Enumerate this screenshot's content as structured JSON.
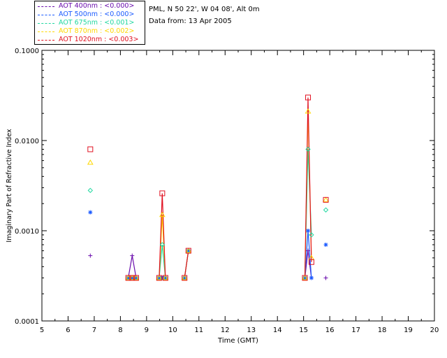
{
  "header": {
    "location": "PML, N 50 22', W 04 08', Alt 0m",
    "date": "Data from: 13 Apr 2005"
  },
  "chart_data": {
    "type": "line",
    "xlabel": "Time (GMT)",
    "ylabel": "Imaginary Part of Refractive Index",
    "xlim": [
      5,
      20
    ],
    "ylim": [
      0.0001,
      0.1
    ],
    "yscale": "log",
    "xticks": [
      "5",
      "6",
      "7",
      "8",
      "9",
      "10",
      "11",
      "12",
      "13",
      "14",
      "15",
      "16",
      "17",
      "18",
      "19",
      "20"
    ],
    "yticks": [
      {
        "value": 0.0001,
        "label": "0.0001"
      },
      {
        "value": 0.001,
        "label": "0.0010"
      },
      {
        "value": 0.01,
        "label": "0.0100"
      },
      {
        "value": 0.1,
        "label": "0.1000"
      }
    ],
    "legend_position": "top-left, outside plot",
    "series": [
      {
        "name": "AOT  400nm : <0.000>",
        "color": "#6a0dad",
        "marker": "plus",
        "points": [
          [
            6.85,
            0.00053
          ],
          [
            8.3,
            0.0003
          ],
          [
            8.45,
            0.00053
          ],
          [
            8.6,
            0.0003
          ],
          [
            9.48,
            0.0003
          ],
          [
            9.6,
            0.0003
          ],
          [
            9.72,
            0.0003
          ],
          [
            10.45,
            0.0003
          ],
          [
            10.6,
            0.0006
          ],
          [
            15.05,
            0.0003
          ],
          [
            15.17,
            0.0006
          ],
          [
            15.3,
            0.0003
          ],
          [
            15.85,
            0.0003
          ]
        ],
        "segments": [
          [
            1,
            2,
            3
          ],
          [
            4,
            5,
            6
          ],
          [
            7,
            8
          ],
          [
            9,
            10,
            11
          ]
        ]
      },
      {
        "name": "AOT  500nm : <0.000>",
        "color": "#1a5aff",
        "marker": "asterisk",
        "points": [
          [
            6.85,
            0.0016
          ],
          [
            8.3,
            0.0003
          ],
          [
            8.45,
            0.0003
          ],
          [
            8.6,
            0.0003
          ],
          [
            9.48,
            0.0003
          ],
          [
            9.6,
            0.0003
          ],
          [
            9.72,
            0.0003
          ],
          [
            10.45,
            0.0003
          ],
          [
            10.6,
            0.0006
          ],
          [
            15.05,
            0.0003
          ],
          [
            15.17,
            0.001
          ],
          [
            15.3,
            0.0003
          ],
          [
            15.85,
            0.0007
          ]
        ],
        "segments": [
          [
            1,
            2,
            3
          ],
          [
            4,
            5,
            6
          ],
          [
            7,
            8
          ],
          [
            9,
            10,
            11
          ]
        ]
      },
      {
        "name": "AOT  675nm : <0.001>",
        "color": "#20d8a0",
        "marker": "diamond",
        "points": [
          [
            6.85,
            0.0028
          ],
          [
            8.3,
            0.0003
          ],
          [
            8.45,
            0.0003
          ],
          [
            8.6,
            0.0003
          ],
          [
            9.48,
            0.0003
          ],
          [
            9.6,
            0.0007
          ],
          [
            9.72,
            0.0003
          ],
          [
            10.45,
            0.0003
          ],
          [
            10.6,
            0.0006
          ],
          [
            15.05,
            0.0003
          ],
          [
            15.17,
            0.008
          ],
          [
            15.3,
            0.0009
          ],
          [
            15.85,
            0.0017
          ]
        ],
        "segments": [
          [
            1,
            2,
            3
          ],
          [
            4,
            5,
            6
          ],
          [
            7,
            8
          ],
          [
            9,
            10,
            11
          ]
        ]
      },
      {
        "name": "AOT  870nm : <0.002>",
        "color": "#ffd800",
        "marker": "triangle",
        "points": [
          [
            6.85,
            0.0057
          ],
          [
            8.3,
            0.0003
          ],
          [
            8.45,
            0.0003
          ],
          [
            8.6,
            0.0003
          ],
          [
            9.48,
            0.0003
          ],
          [
            9.6,
            0.0015
          ],
          [
            9.72,
            0.0003
          ],
          [
            10.45,
            0.0003
          ],
          [
            10.6,
            0.0006
          ],
          [
            15.05,
            0.0003
          ],
          [
            15.17,
            0.021
          ],
          [
            15.3,
            0.0005
          ],
          [
            15.85,
            0.0022
          ]
        ],
        "segments": [
          [
            1,
            2,
            3
          ],
          [
            4,
            5,
            6
          ],
          [
            7,
            8
          ],
          [
            9,
            10,
            11
          ]
        ]
      },
      {
        "name": "AOT 1020nm : <0.003>",
        "color": "#e01020",
        "marker": "square",
        "points": [
          [
            6.85,
            0.008
          ],
          [
            8.3,
            0.0003
          ],
          [
            8.45,
            0.0003
          ],
          [
            8.6,
            0.0003
          ],
          [
            9.48,
            0.0003
          ],
          [
            9.6,
            0.0026
          ],
          [
            9.72,
            0.0003
          ],
          [
            10.45,
            0.0003
          ],
          [
            10.6,
            0.0006
          ],
          [
            15.05,
            0.0003
          ],
          [
            15.17,
            0.03
          ],
          [
            15.3,
            0.00045
          ],
          [
            15.85,
            0.0022
          ]
        ],
        "segments": [
          [
            1,
            2,
            3
          ],
          [
            4,
            5,
            6
          ],
          [
            7,
            8
          ],
          [
            9,
            10,
            11
          ]
        ]
      }
    ]
  }
}
